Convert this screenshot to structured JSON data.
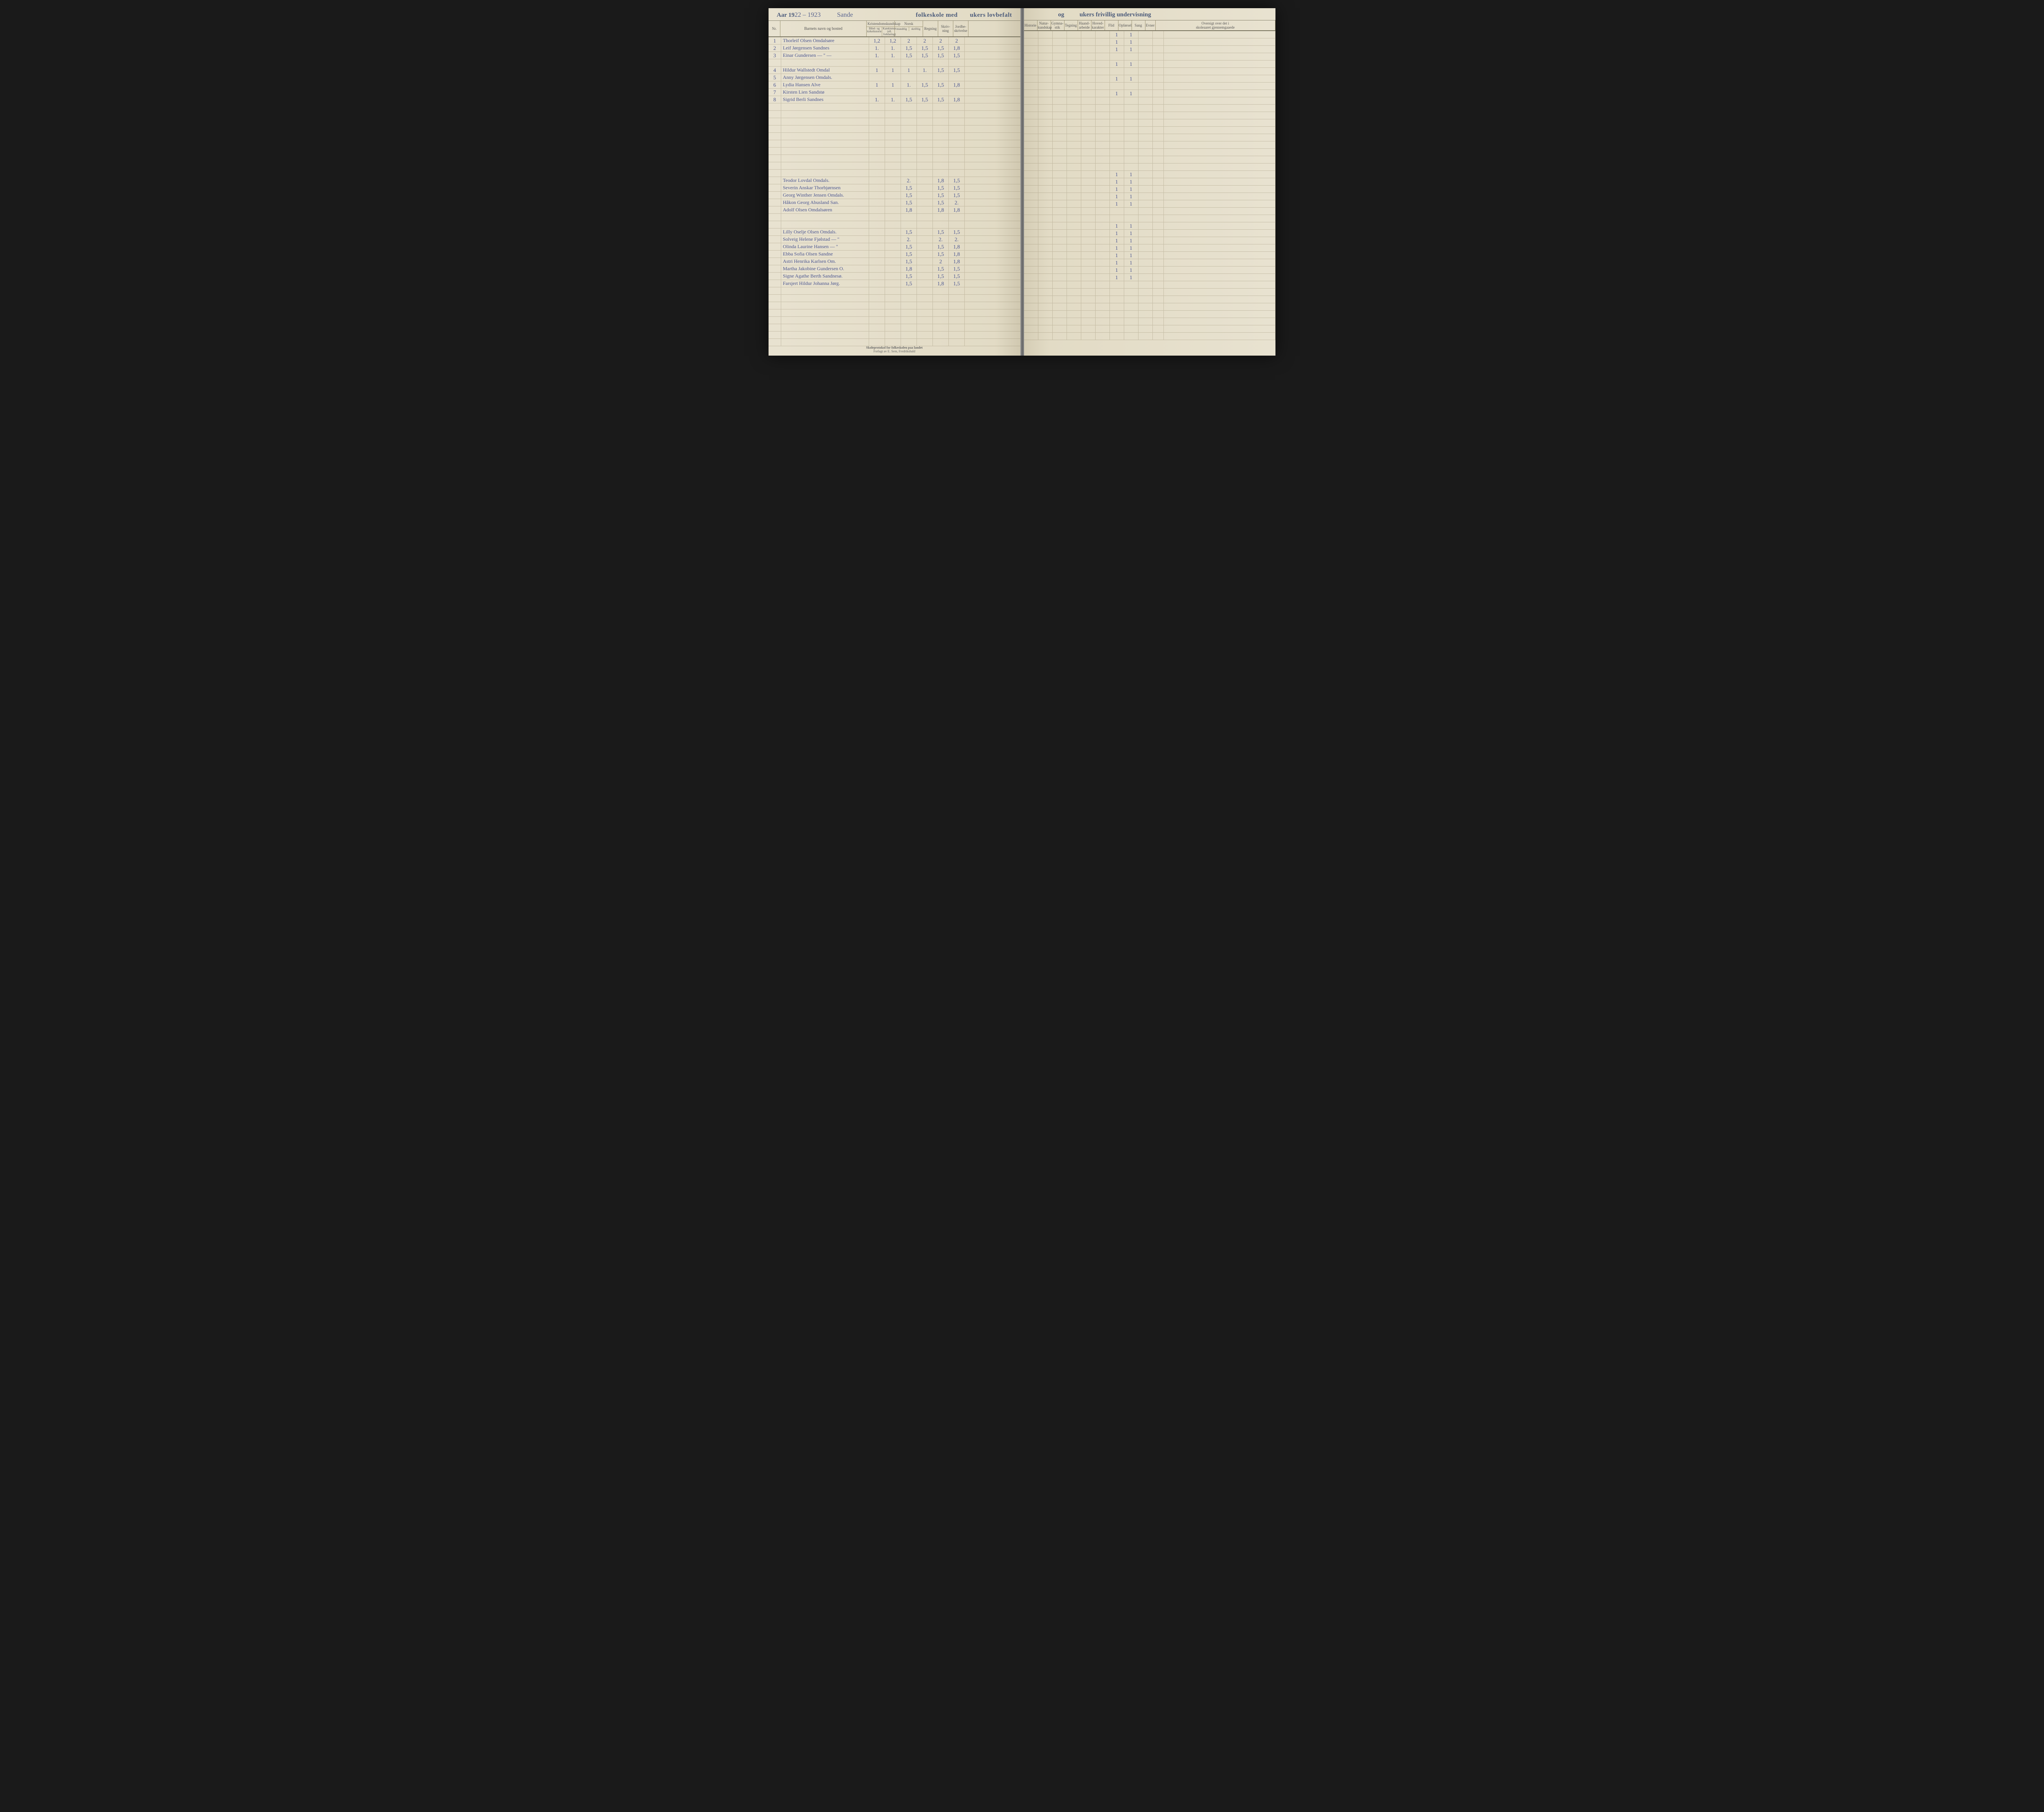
{
  "header": {
    "year_prefix": "Aar 19",
    "year_hand": "22 – 1923",
    "school_hand": "Sande",
    "printed_left": "folkeskole med",
    "printed_mid": "ukers lovbefalt",
    "printed_right_og": "og",
    "printed_right_rest": "ukers frivillig undervisning"
  },
  "columns_left": {
    "nr": "Nr.",
    "name": "Barnets navn og bosted",
    "kristen_group": "Kristendomskundskap",
    "kristen_sub1": "Bibel- og kirkehistorie",
    "kristen_sub2": "Katekismus (ell. forklaring)",
    "norsk_group": "Norsk",
    "norsk_sub1": "mundtlig",
    "norsk_sub2": "skriftlig",
    "regning": "Regning",
    "skrivning": "Skriv-\nning",
    "jordbeskrivelse": "Jordbe-\nskrivelse"
  },
  "columns_right": {
    "historie": "Historie",
    "naturkundskap": "Natur-\nkundskap",
    "gymnastik": "Gymna-\nstik",
    "tegning": "Tegning",
    "haandarbeide": "Haand-\narbeide",
    "hovedkarakter": "Hoved-\nkarakter",
    "flid": "Flid",
    "opforsel": "Opførsel",
    "sang": "Sang",
    "evner": "Evner",
    "oversigt": "Oversigt over det i\nskoleaaret gjennemgaaede"
  },
  "rows": [
    {
      "nr": "1",
      "name": "Thorleif Olsen Omdalsøre",
      "g": [
        "1,2",
        "1,2",
        "2",
        "2",
        "2",
        "2"
      ],
      "r": [
        "1",
        "1"
      ]
    },
    {
      "nr": "2",
      "name": "Leif Jørgensen Sandnes",
      "g": [
        "1.",
        "1.",
        "1,5",
        "1,5",
        "1,5",
        "1,8"
      ],
      "r": [
        "1",
        "1"
      ]
    },
    {
      "nr": "3",
      "name": "Einar Gundersen  — \" —",
      "g": [
        "1.",
        "1.",
        "1,5",
        "1,5",
        "1,5",
        "1,5"
      ],
      "r": [
        "1",
        "1"
      ]
    },
    {
      "nr": "",
      "name": "",
      "g": [
        "",
        "",
        "",
        "",
        "",
        ""
      ],
      "r": [
        "",
        ""
      ]
    },
    {
      "nr": "4",
      "name": "Hildur Wallstedt Omdal",
      "g": [
        "1",
        "1",
        "1",
        "1.",
        "1,5",
        "1,5"
      ],
      "r": [
        "1",
        "1"
      ]
    },
    {
      "nr": "5",
      "name": "Anny Jørgensen Omdals.",
      "g": [
        "",
        "",
        "",
        "",
        "",
        ""
      ],
      "r": [
        "",
        ""
      ]
    },
    {
      "nr": "6",
      "name": "Lydia Hansen Alve",
      "g": [
        "1",
        "1",
        "1.",
        "1,5",
        "1,5",
        "1,8"
      ],
      "r": [
        "1",
        "1"
      ]
    },
    {
      "nr": "7",
      "name": "Kirsten Lien Sandstø",
      "g": [
        "",
        "",
        "",
        "",
        "",
        ""
      ],
      "r": [
        "",
        ""
      ]
    },
    {
      "nr": "8",
      "name": "Sigrid Berli Sandnes",
      "g": [
        "1.",
        "1.",
        "1,5",
        "1,5",
        "1,5",
        "1,8"
      ],
      "r": [
        "1",
        "1"
      ]
    },
    {
      "nr": "",
      "name": "",
      "g": [
        "",
        "",
        "",
        "",
        "",
        ""
      ],
      "r": [
        "",
        ""
      ]
    },
    {
      "nr": "",
      "name": "",
      "g": [
        "",
        "",
        "",
        "",
        "",
        ""
      ],
      "r": [
        "",
        ""
      ]
    },
    {
      "nr": "",
      "name": "",
      "g": [
        "",
        "",
        "",
        "",
        "",
        ""
      ],
      "r": [
        "",
        ""
      ]
    },
    {
      "nr": "",
      "name": "",
      "g": [
        "",
        "",
        "",
        "",
        "",
        ""
      ],
      "r": [
        "",
        ""
      ]
    },
    {
      "nr": "",
      "name": "",
      "g": [
        "",
        "",
        "",
        "",
        "",
        ""
      ],
      "r": [
        "",
        ""
      ]
    },
    {
      "nr": "",
      "name": "",
      "g": [
        "",
        "",
        "",
        "",
        "",
        ""
      ],
      "r": [
        "",
        ""
      ]
    },
    {
      "nr": "",
      "name": "",
      "g": [
        "",
        "",
        "",
        "",
        "",
        ""
      ],
      "r": [
        "",
        ""
      ]
    },
    {
      "nr": "",
      "name": "",
      "g": [
        "",
        "",
        "",
        "",
        "",
        ""
      ],
      "r": [
        "",
        ""
      ]
    },
    {
      "nr": "",
      "name": "",
      "g": [
        "",
        "",
        "",
        "",
        "",
        ""
      ],
      "r": [
        "",
        ""
      ]
    },
    {
      "nr": "",
      "name": "",
      "g": [
        "",
        "",
        "",
        "",
        "",
        ""
      ],
      "r": [
        "",
        ""
      ]
    },
    {
      "nr": "",
      "name": "Teodor Lovdal Omdals.",
      "g": [
        "",
        "",
        "2.",
        "",
        "1,8",
        "1,5"
      ],
      "r": [
        "1",
        "1"
      ]
    },
    {
      "nr": "",
      "name": "Severin Anskar Thorbjørnsen",
      "g": [
        "",
        "",
        "1,5",
        "",
        "1,5",
        "1,5"
      ],
      "r": [
        "1",
        "1"
      ]
    },
    {
      "nr": "",
      "name": "Georg Winther Jensen Omdals.",
      "g": [
        "",
        "",
        "1,5",
        "",
        "1,5",
        "1,5"
      ],
      "r": [
        "1",
        "1"
      ]
    },
    {
      "nr": "",
      "name": "Håkon Georg Abusland San.",
      "g": [
        "",
        "",
        "1,5",
        "",
        "1,5",
        "2."
      ],
      "r": [
        "1",
        "1"
      ]
    },
    {
      "nr": "",
      "name": "Adolf Olsen Omdalsøren",
      "g": [
        "",
        "",
        "1,8",
        "",
        "1,8",
        "1,8"
      ],
      "r": [
        "1",
        "1"
      ]
    },
    {
      "nr": "",
      "name": "",
      "g": [
        "",
        "",
        "",
        "",
        "",
        ""
      ],
      "r": [
        "",
        ""
      ]
    },
    {
      "nr": "",
      "name": "",
      "g": [
        "",
        "",
        "",
        "",
        "",
        ""
      ],
      "r": [
        "",
        ""
      ]
    },
    {
      "nr": "",
      "name": "Lilly Oselje Olsen Omdals.",
      "g": [
        "",
        "",
        "1,5",
        "",
        "1,5",
        "1,5"
      ],
      "r": [
        "1",
        "1"
      ]
    },
    {
      "nr": "",
      "name": "Solveig Helene Fjølstad — \"",
      "g": [
        "",
        "",
        "2.",
        "",
        "2.",
        "2."
      ],
      "r": [
        "1",
        "1"
      ]
    },
    {
      "nr": "",
      "name": "Olinda Laurine Hansen — \"",
      "g": [
        "",
        "",
        "1,5",
        "",
        "1,5",
        "1,8"
      ],
      "r": [
        "1",
        "1"
      ]
    },
    {
      "nr": "",
      "name": "Ebba Sofia Olsen Sandne",
      "g": [
        "",
        "",
        "1,5",
        "",
        "1,5",
        "1,8"
      ],
      "r": [
        "1",
        "1"
      ]
    },
    {
      "nr": "",
      "name": "Astri Henrika Karlsen Om.",
      "g": [
        "",
        "",
        "1,5",
        "",
        "2",
        "1,8"
      ],
      "r": [
        "1",
        "1"
      ]
    },
    {
      "nr": "",
      "name": "Martha Jakobine Gundersen O.",
      "g": [
        "",
        "",
        "1,8",
        "",
        "1,5",
        "1,5"
      ],
      "r": [
        "1",
        "1"
      ]
    },
    {
      "nr": "",
      "name": "Signe Agathe Berth Sandnesø.",
      "g": [
        "",
        "",
        "1,5",
        "",
        "1,5",
        "1,5"
      ],
      "r": [
        "1",
        "1"
      ]
    },
    {
      "nr": "",
      "name": "Farsjert Hildur Johanna Jørg.",
      "g": [
        "",
        "",
        "1,5",
        "",
        "1,8",
        "1,5"
      ],
      "r": [
        "1",
        "1"
      ]
    },
    {
      "nr": "",
      "name": "",
      "g": [
        "",
        "",
        "",
        "",
        "",
        ""
      ],
      "r": [
        "",
        ""
      ]
    },
    {
      "nr": "",
      "name": "",
      "g": [
        "",
        "",
        "",
        "",
        "",
        ""
      ],
      "r": [
        "",
        ""
      ]
    },
    {
      "nr": "",
      "name": "",
      "g": [
        "",
        "",
        "",
        "",
        "",
        ""
      ],
      "r": [
        "",
        ""
      ]
    },
    {
      "nr": "",
      "name": "",
      "g": [
        "",
        "",
        "",
        "",
        "",
        ""
      ],
      "r": [
        "",
        ""
      ]
    },
    {
      "nr": "",
      "name": "",
      "g": [
        "",
        "",
        "",
        "",
        "",
        ""
      ],
      "r": [
        "",
        ""
      ]
    },
    {
      "nr": "",
      "name": "",
      "g": [
        "",
        "",
        "",
        "",
        "",
        ""
      ],
      "r": [
        "",
        ""
      ]
    },
    {
      "nr": "",
      "name": "",
      "g": [
        "",
        "",
        "",
        "",
        "",
        ""
      ],
      "r": [
        "",
        ""
      ]
    },
    {
      "nr": "",
      "name": "",
      "g": [
        "",
        "",
        "",
        "",
        "",
        ""
      ],
      "r": [
        "",
        ""
      ]
    }
  ],
  "footer": {
    "line1": "Skoleprotokol for folkeskolen paa landet",
    "line2": "Forlagt av E. Sem, Fredrikshald"
  }
}
